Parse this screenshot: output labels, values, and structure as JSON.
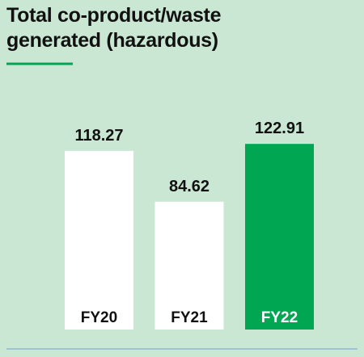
{
  "chart_data": {
    "type": "bar",
    "title": "Total co-product/waste generated (hazardous)",
    "categories": [
      "FY20",
      "FY21",
      "FY22"
    ],
    "values": [
      118.27,
      84.62,
      122.91
    ],
    "colors": [
      "#ffffff",
      "#ffffff",
      "#00a651"
    ]
  }
}
